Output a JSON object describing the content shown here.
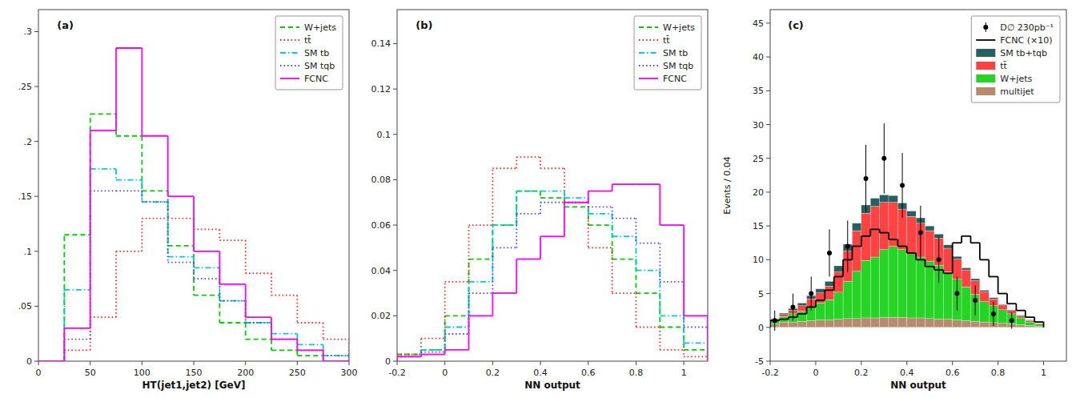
{
  "chart_data": [
    {
      "type": "step",
      "xlabel": "HT(jet1,jet2) [GeV]",
      "annotations": [
        "(a)"
      ],
      "xlim": [
        0,
        300
      ],
      "ylim": [
        0,
        0.32
      ],
      "xticks": [
        0,
        50,
        100,
        150,
        200,
        250,
        300
      ],
      "yticks": [
        0,
        {
          "value": 0.05,
          "label": ".05"
        },
        {
          "value": 0.1,
          "label": ".1"
        },
        {
          "value": 0.15,
          "label": ".15"
        },
        {
          "value": 0.2,
          "label": ".2"
        },
        {
          "value": 0.25,
          "label": ".25"
        },
        {
          "value": 0.3,
          "label": ".3"
        }
      ],
      "legend": "top-right",
      "bins": [
        0,
        25,
        50,
        75,
        100,
        125,
        150,
        175,
        200,
        225,
        250,
        275,
        300
      ],
      "series": [
        {
          "name": "W+jets",
          "color": "#00cc00",
          "line_style": "dashed",
          "values": [
            0.0,
            0.115,
            0.225,
            0.205,
            0.155,
            0.105,
            0.06,
            0.035,
            0.02,
            0.01,
            0.005,
            0.0
          ]
        },
        {
          "name": "tt̄",
          "color": "#ff2222",
          "line_style": "dotted",
          "values": [
            0.0,
            0.01,
            0.04,
            0.1,
            0.13,
            0.13,
            0.12,
            0.11,
            0.08,
            0.06,
            0.035,
            0.02
          ]
        },
        {
          "name": "SM tb",
          "color": "#00cccc",
          "line_style": "dashdot",
          "values": [
            0.0,
            0.065,
            0.175,
            0.165,
            0.145,
            0.095,
            0.085,
            0.055,
            0.035,
            0.025,
            0.015,
            0.005
          ]
        },
        {
          "name": "SM tqb",
          "color": "#4444ff",
          "line_style": "dotted",
          "values": [
            0.0,
            0.02,
            0.155,
            0.155,
            0.145,
            0.09,
            0.075,
            0.055,
            0.035,
            0.02,
            0.01,
            0.005
          ]
        },
        {
          "name": "FCNC",
          "color": "#ff00ff",
          "line_style": "solid",
          "values": [
            0.0,
            0.03,
            0.21,
            0.285,
            0.205,
            0.15,
            0.1,
            0.07,
            0.04,
            0.02,
            0.01,
            0.0
          ]
        }
      ]
    },
    {
      "type": "step",
      "xlabel": "NN output",
      "annotations": [
        "(b)"
      ],
      "xlim": [
        -0.2,
        1.1
      ],
      "ylim": [
        0,
        0.155
      ],
      "xticks": [
        -0.2,
        0,
        0.2,
        0.4,
        0.6,
        0.8,
        1
      ],
      "yticks": [
        0,
        0.02,
        0.04,
        0.06,
        0.08,
        0.1,
        0.12,
        0.14
      ],
      "legend": "top-right",
      "bins": [
        -0.2,
        -0.1,
        0.0,
        0.1,
        0.2,
        0.3,
        0.4,
        0.5,
        0.6,
        0.7,
        0.8,
        0.9,
        1.0,
        1.1
      ],
      "series": [
        {
          "name": "W+jets",
          "color": "#00cc00",
          "line_style": "dashed",
          "values": [
            0.003,
            0.005,
            0.02,
            0.045,
            0.06,
            0.075,
            0.072,
            0.068,
            0.06,
            0.045,
            0.03,
            0.015,
            0.005
          ]
        },
        {
          "name": "tt̄",
          "color": "#ff2222",
          "line_style": "dotted",
          "values": [
            0.003,
            0.01,
            0.035,
            0.06,
            0.085,
            0.09,
            0.085,
            0.07,
            0.05,
            0.03,
            0.015,
            0.005,
            0.002
          ]
        },
        {
          "name": "SM tb",
          "color": "#00cccc",
          "line_style": "dashdot",
          "values": [
            0.002,
            0.005,
            0.015,
            0.035,
            0.06,
            0.075,
            0.075,
            0.072,
            0.065,
            0.055,
            0.04,
            0.02,
            0.008
          ]
        },
        {
          "name": "SM tqb",
          "color": "#4444ff",
          "line_style": "dotted",
          "values": [
            0.002,
            0.004,
            0.012,
            0.03,
            0.05,
            0.065,
            0.07,
            0.07,
            0.068,
            0.063,
            0.052,
            0.035,
            0.015
          ]
        },
        {
          "name": "FCNC",
          "color": "#ff00ff",
          "line_style": "solid",
          "values": [
            0.002,
            0.003,
            0.005,
            0.02,
            0.03,
            0.045,
            0.055,
            0.07,
            0.075,
            0.078,
            0.078,
            0.06,
            0.02
          ]
        }
      ]
    },
    {
      "type": "histogram",
      "stacked": true,
      "xlabel": "NN output",
      "ylabel": "Events / 0.04",
      "annotations": [
        "(c)"
      ],
      "xlim": [
        -0.2,
        1.1
      ],
      "ylim": [
        -5,
        47
      ],
      "xticks": [
        -0.2,
        0,
        0.2,
        0.4,
        0.6,
        0.8,
        1
      ],
      "yticks": [
        -5,
        0,
        5,
        10,
        15,
        20,
        25,
        30,
        35,
        40,
        45
      ],
      "legend": "top-right",
      "bins": [
        -0.2,
        -0.16,
        -0.12,
        -0.08,
        -0.04,
        0.0,
        0.04,
        0.08,
        0.12,
        0.16,
        0.2,
        0.24,
        0.28,
        0.32,
        0.36,
        0.4,
        0.44,
        0.48,
        0.52,
        0.56,
        0.6,
        0.64,
        0.68,
        0.72,
        0.76,
        0.8,
        0.84,
        0.88,
        0.92,
        0.96,
        1.0
      ],
      "series": [
        {
          "name": "multijet",
          "color": "#aa7755",
          "values": [
            0.5,
            0.8,
            0.8,
            0.9,
            1.0,
            1.1,
            1.1,
            1.2,
            1.3,
            1.3,
            1.4,
            1.4,
            1.5,
            1.5,
            1.5,
            1.4,
            1.4,
            1.3,
            1.2,
            1.2,
            1.1,
            1.0,
            0.9,
            0.8,
            0.7,
            0.6,
            0.5,
            0.4,
            0.3,
            0.2
          ]
        },
        {
          "name": "W+jets",
          "color": "#00cc00",
          "values": [
            0.5,
            0.8,
            1.2,
            1.5,
            2.0,
            2.5,
            3.0,
            4.0,
            5.5,
            7.0,
            8.5,
            9.0,
            10.0,
            10.5,
            10.0,
            9.5,
            9.0,
            8.5,
            8.0,
            7.0,
            6.0,
            5.0,
            4.0,
            3.0,
            2.5,
            2.0,
            1.5,
            1.0,
            0.5,
            0.3
          ]
        },
        {
          "name": "tt̄",
          "color": "#ff2222",
          "values": [
            0.2,
            0.3,
            0.5,
            0.8,
            1.2,
            1.5,
            2.0,
            3.0,
            4.5,
            6.0,
            7.0,
            7.5,
            7.0,
            6.5,
            6.0,
            5.5,
            5.0,
            4.5,
            4.0,
            3.5,
            3.0,
            2.5,
            2.0,
            1.5,
            1.0,
            0.7,
            0.5,
            0.3,
            0.2,
            0.1
          ]
        },
        {
          "name": "SM tb+tqb",
          "color": "#004444",
          "values": [
            0.1,
            0.2,
            0.3,
            0.4,
            0.5,
            0.6,
            0.7,
            0.9,
            1.0,
            1.1,
            1.2,
            1.2,
            1.1,
            1.0,
            0.9,
            0.8,
            0.8,
            0.7,
            0.6,
            0.5,
            0.4,
            0.3,
            0.3,
            0.2,
            0.2,
            0.1,
            0.1,
            0.1,
            0.1,
            0.0
          ]
        },
        {
          "name": "FCNC (×10)",
          "type": "step",
          "color": "black",
          "line_style": "solid",
          "values": [
            1.0,
            1.2,
            1.5,
            2.0,
            3.0,
            4.0,
            5.5,
            7.5,
            10.0,
            12.0,
            13.5,
            14.5,
            14.0,
            13.0,
            12.0,
            11.0,
            10.0,
            9.0,
            8.5,
            8.0,
            12.5,
            13.5,
            12.5,
            10.0,
            7.5,
            5.0,
            3.5,
            2.5,
            1.5,
            0.8
          ]
        },
        {
          "name": "D∅ 230pb⁻¹",
          "type": "scatter",
          "color": "black",
          "marker": "circle",
          "x": [
            -0.18,
            -0.1,
            -0.02,
            0.06,
            0.14,
            0.22,
            0.3,
            0.38,
            0.46,
            0.54,
            0.62,
            0.7,
            0.78,
            0.86
          ],
          "values": [
            1,
            3,
            5,
            11,
            12,
            22,
            25,
            21,
            14,
            10,
            5,
            4,
            2,
            1
          ],
          "errors": [
            1.5,
            2.0,
            2.5,
            3.5,
            3.8,
            5.0,
            5.2,
            4.8,
            4.0,
            3.4,
            2.5,
            2.2,
            1.8,
            1.2
          ]
        }
      ]
    }
  ]
}
